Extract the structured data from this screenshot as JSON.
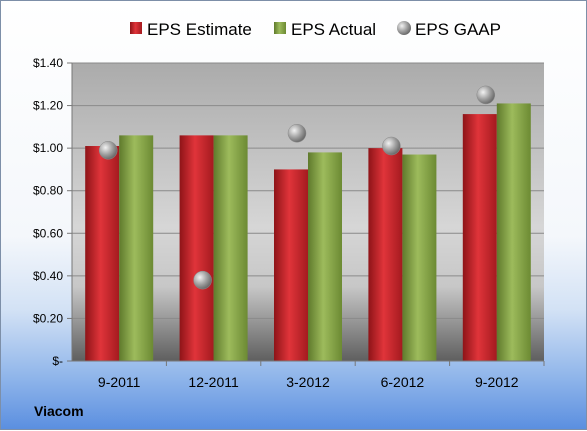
{
  "company": "Viacom",
  "chart_data": {
    "type": "bar",
    "categories": [
      "9-2011",
      "12-2011",
      "3-2012",
      "6-2012",
      "9-2012"
    ],
    "series": [
      {
        "name": "EPS Estimate",
        "kind": "bar",
        "color": "#c8232a",
        "values": [
          1.01,
          1.06,
          0.9,
          1.0,
          1.16
        ]
      },
      {
        "name": "EPS Actual",
        "kind": "bar",
        "color": "#86a44a",
        "values": [
          1.06,
          1.06,
          0.98,
          0.97,
          1.21
        ]
      },
      {
        "name": "EPS GAAP",
        "kind": "scatter",
        "color": "#a6a6a6",
        "values": [
          0.99,
          0.38,
          1.07,
          1.01,
          1.25
        ]
      }
    ],
    "ylim": [
      0,
      1.4
    ],
    "yticks": [
      0,
      0.2,
      0.4,
      0.6,
      0.8,
      1.0,
      1.2,
      1.4
    ],
    "ytick_labels": [
      "$-",
      "$0.20",
      "$0.40",
      "$0.60",
      "$0.80",
      "$1.00",
      "$1.20",
      "$1.40"
    ],
    "grid": true,
    "legend": "top"
  }
}
